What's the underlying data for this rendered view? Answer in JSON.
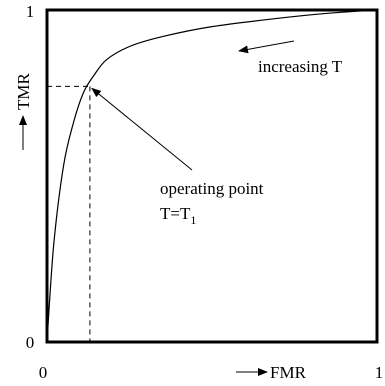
{
  "chart_data": {
    "type": "line",
    "xlabel": "FMR",
    "ylabel": "TMR",
    "xlim": [
      0,
      1
    ],
    "ylim": [
      0,
      1
    ],
    "x_ticks": [
      "0",
      "1"
    ],
    "y_ticks": [
      "0",
      "1"
    ],
    "grid": false,
    "series": [
      {
        "x": [
          0,
          0.02,
          0.05,
          0.08,
          0.11,
          0.14,
          0.18,
          0.25,
          0.35,
          0.5,
          0.7,
          0.85,
          1.0
        ],
        "y": [
          0,
          0.29,
          0.53,
          0.66,
          0.75,
          0.8,
          0.85,
          0.89,
          0.92,
          0.95,
          0.975,
          0.99,
          1.0
        ]
      }
    ],
    "operating_point": {
      "x": 0.13,
      "y": 0.77
    },
    "annotations": {
      "direction": "increasing T",
      "operating_line1": "operating point",
      "operating_line2_main": "T=T",
      "operating_line2_sub": "1"
    }
  }
}
